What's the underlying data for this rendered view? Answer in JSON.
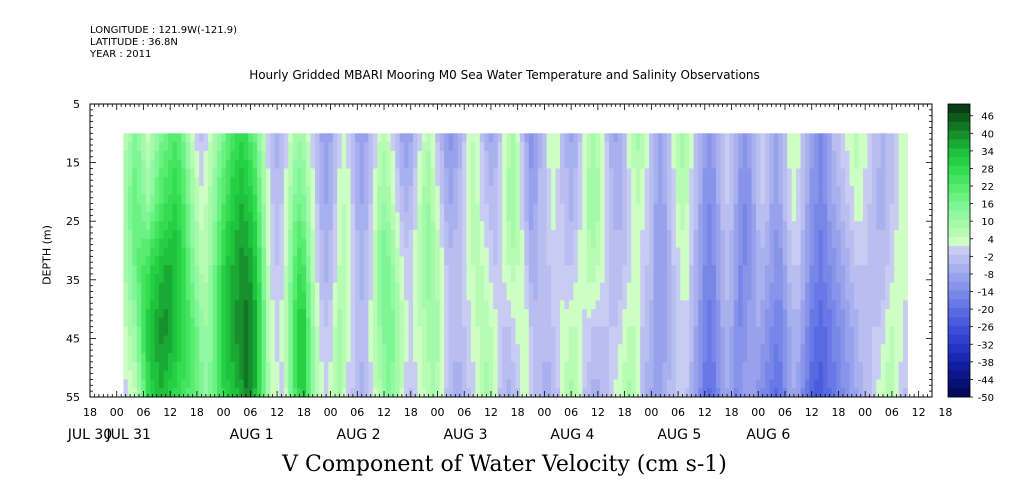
{
  "meta": {
    "longitude": "LONGITUDE : 121.9W(-121.9)",
    "latitude": "LATITUDE : 36.8N",
    "year": "YEAR : 2011"
  },
  "subtitle": "Hourly Gridded MBARI Mooring M0 Sea Water Temperature and Salinity Observations",
  "title": "V Component of Water Velocity (cm s-1)",
  "chart_data": {
    "type": "heatmap",
    "title": "V Component of Water Velocity (cm s-1)",
    "subtitle": "Hourly Gridded MBARI Mooring M0 Sea Water Temperature and Salinity Observations",
    "ylabel": "DEPTH (m)",
    "xlabel": "",
    "ylim": [
      55,
      5
    ],
    "yticks": [
      "5",
      "15",
      "25",
      "35",
      "45",
      "55"
    ],
    "xlim_hours": [
      -6,
      183
    ],
    "x_hour_ticks": [
      "18",
      "00",
      "06",
      "12",
      "18",
      "00",
      "06",
      "12",
      "18",
      "00",
      "06",
      "12",
      "18",
      "00",
      "06",
      "12",
      "18",
      "00",
      "06",
      "12",
      "18",
      "00",
      "06",
      "12",
      "18",
      "00",
      "06",
      "12",
      "18",
      "00",
      "06",
      "12",
      "18"
    ],
    "x_day_labels": [
      "JUL 30",
      "JUL 31",
      "AUG  1",
      "AUG  2",
      "AUG  3",
      "AUG  4",
      "AUG  5",
      "AUG  6"
    ],
    "data_depth_range_m": [
      10,
      55
    ],
    "data_time_start_hour": 1.5,
    "colorbar": {
      "labels": [
        "46",
        "40",
        "34",
        "28",
        "22",
        "16",
        "10",
        "4",
        "-2",
        "-8",
        "-14",
        "-20",
        "-26",
        "-32",
        "-38",
        "-44",
        "-50"
      ],
      "levels": [
        50,
        46,
        43,
        40,
        37,
        34,
        31,
        28,
        25,
        22,
        19,
        16,
        13,
        10,
        7,
        4,
        1,
        -2,
        -5,
        -8,
        -11,
        -14,
        -17,
        -20,
        -23,
        -26,
        -29,
        -32,
        -35,
        -38,
        -41,
        -44,
        -47,
        -50
      ],
      "colors": [
        "#0a3d14",
        "#0e5a1c",
        "#127524",
        "#168f2c",
        "#1aa934",
        "#1ec23c",
        "#26d046",
        "#34dc52",
        "#44e460",
        "#58ec70",
        "#6cf282",
        "#7ff694",
        "#92f8a4",
        "#a4faa8",
        "#b8fcb4",
        "#cdfec4",
        "#c8ccf2",
        "#b8bef0",
        "#a8b0ee",
        "#98a2ec",
        "#8894ea",
        "#7886e8",
        "#6878e6",
        "#586ae2",
        "#4a5cde",
        "#3c4ed8",
        "#3040d0",
        "#2434c4",
        "#1a28b4",
        "#121ea0",
        "#0c168a",
        "#080f72",
        "#040a5a"
      ]
    },
    "columns_hourly_v_surface_to_bottom": [
      [
        6,
        10,
        8,
        4,
        0
      ],
      [
        10,
        14,
        12,
        8,
        2
      ],
      [
        14,
        18,
        16,
        10,
        4
      ],
      [
        12,
        16,
        20,
        16,
        10
      ],
      [
        8,
        14,
        22,
        24,
        18
      ],
      [
        4,
        10,
        24,
        30,
        26
      ],
      [
        8,
        14,
        28,
        34,
        30
      ],
      [
        12,
        18,
        30,
        36,
        32
      ],
      [
        16,
        22,
        32,
        38,
        34
      ],
      [
        18,
        24,
        34,
        38,
        32
      ],
      [
        20,
        26,
        34,
        36,
        30
      ],
      [
        22,
        28,
        34,
        34,
        28
      ],
      [
        20,
        26,
        30,
        30,
        26
      ],
      [
        16,
        22,
        26,
        28,
        24
      ],
      [
        10,
        16,
        20,
        24,
        22
      ],
      [
        4,
        10,
        14,
        20,
        20
      ],
      [
        0,
        6,
        10,
        16,
        18
      ],
      [
        -2,
        2,
        6,
        12,
        14
      ],
      [
        0,
        4,
        6,
        10,
        12
      ],
      [
        4,
        8,
        10,
        12,
        14
      ],
      [
        8,
        12,
        16,
        18,
        18
      ],
      [
        12,
        18,
        22,
        24,
        24
      ],
      [
        16,
        22,
        28,
        30,
        28
      ],
      [
        20,
        26,
        32,
        34,
        30
      ],
      [
        24,
        30,
        34,
        36,
        32
      ],
      [
        26,
        32,
        36,
        38,
        34
      ],
      [
        28,
        34,
        38,
        40,
        36
      ],
      [
        26,
        32,
        38,
        42,
        40
      ],
      [
        22,
        30,
        36,
        40,
        38
      ],
      [
        18,
        26,
        32,
        36,
        34
      ],
      [
        12,
        18,
        24,
        28,
        28
      ],
      [
        6,
        10,
        14,
        18,
        18
      ],
      [
        0,
        2,
        4,
        6,
        8
      ],
      [
        -4,
        -2,
        0,
        2,
        4
      ],
      [
        -6,
        -4,
        -2,
        0,
        2
      ],
      [
        -4,
        -2,
        0,
        2,
        0
      ],
      [
        0,
        2,
        4,
        6,
        4
      ],
      [
        4,
        8,
        12,
        16,
        14
      ],
      [
        8,
        14,
        20,
        24,
        22
      ],
      [
        10,
        16,
        24,
        30,
        28
      ],
      [
        8,
        14,
        22,
        30,
        30
      ],
      [
        4,
        8,
        14,
        20,
        22
      ],
      [
        0,
        2,
        6,
        10,
        12
      ],
      [
        -4,
        -2,
        0,
        4,
        6
      ],
      [
        -8,
        -6,
        -4,
        0,
        2
      ],
      [
        -10,
        -8,
        -6,
        -2,
        0
      ],
      [
        -8,
        -6,
        -4,
        0,
        2
      ],
      [
        -4,
        -2,
        0,
        4,
        6
      ],
      [
        0,
        2,
        4,
        8,
        8
      ],
      [
        2,
        4,
        6,
        6,
        4
      ],
      [
        0,
        2,
        2,
        2,
        0
      ],
      [
        -4,
        -2,
        0,
        0,
        -2
      ],
      [
        -8,
        -6,
        -4,
        -2,
        -4
      ],
      [
        -10,
        -8,
        -6,
        -4,
        -6
      ],
      [
        -8,
        -6,
        -4,
        -2,
        -4
      ],
      [
        -4,
        -2,
        0,
        2,
        0
      ],
      [
        0,
        2,
        6,
        6,
        4
      ],
      [
        4,
        8,
        12,
        10,
        6
      ],
      [
        6,
        10,
        16,
        14,
        10
      ],
      [
        4,
        8,
        14,
        16,
        14
      ],
      [
        0,
        4,
        10,
        14,
        12
      ],
      [
        -4,
        0,
        6,
        10,
        8
      ],
      [
        -8,
        -4,
        2,
        6,
        4
      ],
      [
        -10,
        -6,
        0,
        2,
        0
      ],
      [
        -8,
        -4,
        0,
        0,
        -2
      ],
      [
        -4,
        0,
        2,
        2,
        0
      ],
      [
        0,
        4,
        6,
        4,
        2
      ],
      [
        4,
        8,
        10,
        6,
        4
      ],
      [
        6,
        10,
        12,
        8,
        6
      ],
      [
        2,
        6,
        10,
        10,
        8
      ],
      [
        -2,
        2,
        6,
        8,
        6
      ],
      [
        -6,
        -2,
        2,
        4,
        2
      ],
      [
        -10,
        -6,
        -2,
        0,
        -2
      ],
      [
        -12,
        -8,
        -4,
        -2,
        -4
      ],
      [
        -10,
        -6,
        -4,
        -4,
        -6
      ],
      [
        -6,
        -4,
        -2,
        -4,
        -6
      ],
      [
        -2,
        0,
        0,
        -2,
        -4
      ],
      [
        2,
        4,
        2,
        0,
        -2
      ],
      [
        4,
        6,
        4,
        2,
        0
      ],
      [
        2,
        4,
        6,
        4,
        2
      ],
      [
        -2,
        0,
        4,
        6,
        6
      ],
      [
        -6,
        -2,
        2,
        6,
        8
      ],
      [
        -8,
        -4,
        0,
        4,
        6
      ],
      [
        -6,
        -4,
        -2,
        2,
        2
      ],
      [
        -2,
        0,
        0,
        0,
        -2
      ],
      [
        2,
        4,
        2,
        -2,
        -4
      ],
      [
        6,
        8,
        4,
        -2,
        -6
      ],
      [
        8,
        10,
        6,
        0,
        -4
      ],
      [
        4,
        6,
        4,
        2,
        -2
      ],
      [
        -2,
        0,
        2,
        4,
        2
      ],
      [
        -8,
        -6,
        -2,
        2,
        4
      ],
      [
        -12,
        -10,
        -6,
        -2,
        0
      ],
      [
        -10,
        -8,
        -6,
        -4,
        -2
      ],
      [
        -6,
        -4,
        -4,
        -4,
        -4
      ],
      [
        -2,
        -2,
        -2,
        -4,
        -6
      ],
      [
        2,
        0,
        -2,
        -4,
        -6
      ],
      [
        4,
        2,
        0,
        -2,
        -4
      ],
      [
        2,
        0,
        0,
        0,
        -2
      ],
      [
        -2,
        -2,
        0,
        2,
        2
      ],
      [
        -6,
        -4,
        -2,
        2,
        6
      ],
      [
        -8,
        -6,
        -2,
        4,
        8
      ],
      [
        -6,
        -4,
        0,
        4,
        6
      ],
      [
        -2,
        0,
        2,
        2,
        2
      ],
      [
        2,
        4,
        4,
        0,
        -2
      ],
      [
        6,
        8,
        6,
        0,
        -4
      ],
      [
        8,
        10,
        6,
        -2,
        -6
      ],
      [
        6,
        8,
        4,
        -2,
        -6
      ],
      [
        2,
        4,
        2,
        -2,
        -4
      ],
      [
        -2,
        0,
        0,
        -2,
        -2
      ],
      [
        -6,
        -4,
        -2,
        -2,
        0
      ],
      [
        -8,
        -6,
        -4,
        -2,
        2
      ],
      [
        -6,
        -6,
        -4,
        0,
        4
      ],
      [
        -2,
        -4,
        -2,
        2,
        6
      ],
      [
        2,
        0,
        0,
        4,
        8
      ],
      [
        6,
        2,
        2,
        4,
        6
      ],
      [
        8,
        4,
        2,
        2,
        2
      ],
      [
        6,
        2,
        0,
        -2,
        -2
      ],
      [
        2,
        0,
        -2,
        -4,
        -6
      ],
      [
        -2,
        -4,
        -4,
        -6,
        -8
      ],
      [
        -6,
        -8,
        -8,
        -8,
        -8
      ],
      [
        -8,
        -10,
        -10,
        -10,
        -8
      ],
      [
        -6,
        -8,
        -10,
        -10,
        -6
      ],
      [
        -2,
        -4,
        -6,
        -8,
        -4
      ],
      [
        2,
        0,
        -2,
        -4,
        -2
      ],
      [
        6,
        4,
        0,
        -2,
        0
      ],
      [
        8,
        6,
        2,
        0,
        0
      ],
      [
        6,
        4,
        2,
        0,
        -2
      ],
      [
        2,
        0,
        -2,
        -4,
        -6
      ],
      [
        -2,
        -4,
        -6,
        -8,
        -10
      ],
      [
        -6,
        -8,
        -10,
        -12,
        -14
      ],
      [
        -10,
        -12,
        -14,
        -16,
        -18
      ],
      [
        -12,
        -14,
        -16,
        -18,
        -20
      ],
      [
        -10,
        -12,
        -14,
        -16,
        -18
      ],
      [
        -6,
        -8,
        -10,
        -12,
        -14
      ],
      [
        -2,
        -4,
        -6,
        -8,
        -10
      ],
      [
        0,
        -2,
        -4,
        -6,
        -8
      ],
      [
        -2,
        -4,
        -6,
        -8,
        -10
      ],
      [
        -6,
        -8,
        -10,
        -12,
        -14
      ],
      [
        -10,
        -12,
        -14,
        -14,
        -12
      ],
      [
        -12,
        -14,
        -14,
        -12,
        -10
      ],
      [
        -10,
        -12,
        -12,
        -10,
        -8
      ],
      [
        -6,
        -8,
        -8,
        -8,
        -10
      ],
      [
        -2,
        -4,
        -6,
        -8,
        -12
      ],
      [
        0,
        -2,
        -6,
        -10,
        -14
      ],
      [
        -2,
        -4,
        -8,
        -12,
        -16
      ],
      [
        -6,
        -8,
        -10,
        -14,
        -18
      ],
      [
        -8,
        -10,
        -12,
        -16,
        -20
      ],
      [
        -6,
        -8,
        -12,
        -16,
        -18
      ],
      [
        -2,
        -4,
        -8,
        -12,
        -14
      ],
      [
        2,
        0,
        -4,
        -8,
        -10
      ],
      [
        4,
        2,
        -2,
        -6,
        -8
      ],
      [
        2,
        0,
        -2,
        -6,
        -10
      ],
      [
        -2,
        -4,
        -6,
        -10,
        -14
      ],
      [
        -6,
        -8,
        -10,
        -14,
        -18
      ],
      [
        -10,
        -12,
        -14,
        -18,
        -22
      ],
      [
        -12,
        -14,
        -16,
        -20,
        -24
      ],
      [
        -14,
        -16,
        -18,
        -22,
        -24
      ],
      [
        -12,
        -14,
        -16,
        -20,
        -22
      ],
      [
        -8,
        -10,
        -14,
        -18,
        -20
      ],
      [
        -4,
        -8,
        -12,
        -16,
        -18
      ],
      [
        -2,
        -6,
        -10,
        -14,
        -16
      ],
      [
        0,
        -4,
        -8,
        -12,
        -14
      ],
      [
        2,
        -2,
        -6,
        -10,
        -12
      ],
      [
        4,
        0,
        -4,
        -8,
        -10
      ],
      [
        6,
        2,
        -2,
        -6,
        -8
      ],
      [
        4,
        2,
        -2,
        -4,
        -6
      ],
      [
        2,
        0,
        -2,
        -4,
        -4
      ],
      [
        0,
        -2,
        -2,
        -4,
        -2
      ],
      [
        -2,
        -4,
        -4,
        -2,
        0
      ],
      [
        -4,
        -6,
        -4,
        -2,
        2
      ],
      [
        -6,
        -6,
        -4,
        0,
        4
      ],
      [
        -4,
        -4,
        -2,
        2,
        6
      ],
      [
        -2,
        -2,
        0,
        4,
        6
      ],
      [
        0,
        0,
        2,
        4,
        4
      ],
      [
        2,
        2,
        2,
        2,
        0
      ],
      [
        4,
        4,
        2,
        0,
        -2
      ]
    ]
  }
}
